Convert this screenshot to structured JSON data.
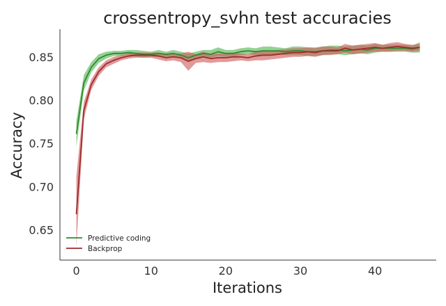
{
  "chart_data": {
    "type": "line",
    "title": "crossentropy_svhn test accuracies",
    "xlabel": "Iterations",
    "ylabel": "Accuracy",
    "xlim": [
      -2.2,
      48.2
    ],
    "ylim": [
      0.615,
      0.882
    ],
    "xticks": [
      0,
      10,
      20,
      30,
      40
    ],
    "yticks": [
      0.65,
      0.7,
      0.75,
      0.8,
      0.85
    ],
    "ytick_labels": [
      "0.65",
      "0.70",
      "0.75",
      "0.80",
      "0.85"
    ],
    "grid": false,
    "legend_position": "lower-left",
    "x": [
      0,
      1,
      2,
      3,
      4,
      5,
      6,
      7,
      8,
      9,
      10,
      11,
      12,
      13,
      14,
      15,
      16,
      17,
      18,
      19,
      20,
      21,
      22,
      23,
      24,
      25,
      26,
      27,
      28,
      29,
      30,
      31,
      32,
      33,
      34,
      35,
      36,
      37,
      38,
      39,
      40,
      41,
      42,
      43,
      44,
      45,
      46
    ],
    "series": [
      {
        "name": "Predictive coding",
        "color": "#2e8b2e",
        "band_color": "#5cb85c",
        "values": [
          0.761,
          0.82,
          0.838,
          0.848,
          0.852,
          0.854,
          0.854,
          0.855,
          0.854,
          0.853,
          0.853,
          0.854,
          0.853,
          0.854,
          0.852,
          0.849,
          0.852,
          0.854,
          0.853,
          0.856,
          0.854,
          0.854,
          0.856,
          0.857,
          0.856,
          0.857,
          0.857,
          0.857,
          0.856,
          0.857,
          0.857,
          0.856,
          0.856,
          0.857,
          0.858,
          0.858,
          0.857,
          0.858,
          0.859,
          0.858,
          0.86,
          0.86,
          0.86,
          0.86,
          0.86,
          0.859,
          0.861
        ],
        "lower": [
          0.746,
          0.811,
          0.832,
          0.843,
          0.848,
          0.851,
          0.851,
          0.852,
          0.85,
          0.849,
          0.85,
          0.85,
          0.85,
          0.85,
          0.848,
          0.844,
          0.848,
          0.85,
          0.849,
          0.851,
          0.85,
          0.85,
          0.852,
          0.853,
          0.852,
          0.852,
          0.852,
          0.853,
          0.852,
          0.852,
          0.852,
          0.851,
          0.851,
          0.852,
          0.853,
          0.853,
          0.852,
          0.853,
          0.854,
          0.853,
          0.855,
          0.856,
          0.856,
          0.856,
          0.856,
          0.855,
          0.855
        ],
        "upper": [
          0.776,
          0.829,
          0.844,
          0.853,
          0.856,
          0.857,
          0.857,
          0.858,
          0.858,
          0.857,
          0.856,
          0.858,
          0.856,
          0.858,
          0.856,
          0.854,
          0.856,
          0.858,
          0.858,
          0.861,
          0.858,
          0.858,
          0.86,
          0.861,
          0.86,
          0.862,
          0.862,
          0.861,
          0.86,
          0.862,
          0.862,
          0.861,
          0.861,
          0.862,
          0.863,
          0.863,
          0.862,
          0.863,
          0.864,
          0.863,
          0.865,
          0.864,
          0.864,
          0.864,
          0.864,
          0.863,
          0.867
        ]
      },
      {
        "name": "Backprop",
        "color": "#9e2a2b",
        "band_color": "#cd5c5c",
        "values": [
          0.668,
          0.788,
          0.818,
          0.833,
          0.842,
          0.846,
          0.849,
          0.851,
          0.852,
          0.852,
          0.852,
          0.851,
          0.849,
          0.85,
          0.849,
          0.845,
          0.848,
          0.85,
          0.848,
          0.849,
          0.849,
          0.85,
          0.85,
          0.849,
          0.851,
          0.852,
          0.852,
          0.853,
          0.854,
          0.855,
          0.855,
          0.856,
          0.855,
          0.857,
          0.857,
          0.857,
          0.86,
          0.858,
          0.859,
          0.86,
          0.861,
          0.86,
          0.861,
          0.862,
          0.861,
          0.86,
          0.861
        ],
        "lower": [
          0.63,
          0.778,
          0.812,
          0.828,
          0.838,
          0.842,
          0.846,
          0.848,
          0.849,
          0.849,
          0.849,
          0.847,
          0.845,
          0.846,
          0.844,
          0.834,
          0.843,
          0.844,
          0.843,
          0.844,
          0.844,
          0.845,
          0.846,
          0.845,
          0.846,
          0.846,
          0.847,
          0.848,
          0.849,
          0.85,
          0.85,
          0.851,
          0.85,
          0.852,
          0.852,
          0.853,
          0.855,
          0.853,
          0.854,
          0.855,
          0.856,
          0.856,
          0.856,
          0.857,
          0.857,
          0.856,
          0.857
        ],
        "upper": [
          0.712,
          0.798,
          0.824,
          0.838,
          0.846,
          0.85,
          0.852,
          0.854,
          0.855,
          0.855,
          0.855,
          0.855,
          0.853,
          0.854,
          0.854,
          0.856,
          0.853,
          0.856,
          0.853,
          0.854,
          0.854,
          0.855,
          0.854,
          0.853,
          0.856,
          0.858,
          0.857,
          0.858,
          0.859,
          0.86,
          0.86,
          0.861,
          0.86,
          0.862,
          0.862,
          0.861,
          0.865,
          0.863,
          0.864,
          0.865,
          0.866,
          0.864,
          0.866,
          0.867,
          0.865,
          0.864,
          0.865
        ]
      }
    ]
  }
}
